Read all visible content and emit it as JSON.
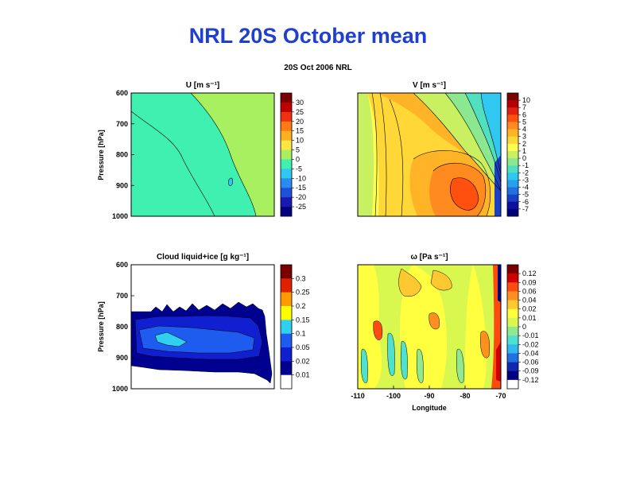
{
  "page": {
    "title": "NRL 20S October mean"
  },
  "figure": {
    "suptitle": "20S Oct 2006 NRL"
  },
  "chart_data": [
    {
      "type": "heatmap",
      "title": "U [m s⁻¹]",
      "xlabel": "",
      "ylabel": "Pressure [hPa]",
      "y_ticks": [
        "600",
        "700",
        "800",
        "900",
        "1000"
      ],
      "x_ticks": [],
      "colorbar": {
        "labels": [
          "30",
          "25",
          "20",
          "15",
          "10",
          "5",
          "0",
          "-5",
          "-10",
          "-15",
          "-20",
          "-25"
        ],
        "colors": [
          "#7a0000",
          "#c00000",
          "#f03010",
          "#ff7a10",
          "#ffb020",
          "#ffe640",
          "#a8f060",
          "#40f0b0",
          "#30c8f0",
          "#2a8cf0",
          "#1e50d8",
          "#1a18b0",
          "#000080"
        ]
      },
      "dominant_levels": [
        "-5",
        "0",
        "5"
      ]
    },
    {
      "type": "heatmap",
      "title": "V [m s⁻¹]",
      "xlabel": "",
      "ylabel": "",
      "y_ticks": [],
      "x_ticks": [],
      "colorbar": {
        "labels": [
          "10",
          "7",
          "6",
          "5",
          "4",
          "3",
          "2",
          "1",
          "0",
          "-1",
          "-2",
          "-3",
          "-4",
          "-5",
          "-6",
          "-7"
        ],
        "colors": [
          "#7a0000",
          "#b40000",
          "#e02010",
          "#ff5010",
          "#ff8a20",
          "#ffb428",
          "#ffd838",
          "#ffff50",
          "#c8f060",
          "#8ce890",
          "#50e0c0",
          "#30c8f0",
          "#28a0f0",
          "#2070e0",
          "#1a40c8",
          "#1010a0",
          "#00007a"
        ]
      },
      "dominant_levels": [
        "-3",
        "0",
        "1",
        "2",
        "3",
        "4"
      ]
    },
    {
      "type": "heatmap",
      "title": "Cloud liquid+ice [g kg⁻¹]",
      "xlabel": "",
      "ylabel": "Pressure [hPa]",
      "y_ticks": [
        "600",
        "700",
        "800",
        "900",
        "1000"
      ],
      "x_ticks": [],
      "colorbar": {
        "labels": [
          "0.3",
          "0.25",
          "0.2",
          "0.15",
          "0.1",
          "0.05",
          "0.02",
          "0.01"
        ],
        "colors": [
          "#7a0000",
          "#e02000",
          "#ff9a00",
          "#ffff00",
          "#30d0f0",
          "#1e5cf0",
          "#1020d0",
          "#000090",
          "#ffffff"
        ]
      },
      "dominant_levels": [
        "0.01",
        "0.02",
        "0.05",
        "0.1"
      ]
    },
    {
      "type": "heatmap",
      "title": "ω [Pa s⁻¹]",
      "xlabel": "Longitude",
      "ylabel": "",
      "y_ticks": [],
      "x_ticks": [
        "-110",
        "-100",
        "-90",
        "-80",
        "-70"
      ],
      "colorbar": {
        "labels": [
          "0.12",
          "0.09",
          "0.06",
          "0.04",
          "0.02",
          "0.01",
          "0",
          "-0.01",
          "-0.02",
          "-0.04",
          "-0.06",
          "-0.09",
          "-0.12"
        ],
        "colors": [
          "#7a0000",
          "#d00000",
          "#ff4a10",
          "#ff9020",
          "#ffc830",
          "#ffff40",
          "#d8f850",
          "#90e890",
          "#50e0d0",
          "#30b8f0",
          "#2070e0",
          "#1028b0",
          "#000080",
          "#ffffff"
        ]
      },
      "dominant_levels": [
        "-0.01",
        "0",
        "0.01",
        "0.02",
        "0.04"
      ]
    }
  ]
}
